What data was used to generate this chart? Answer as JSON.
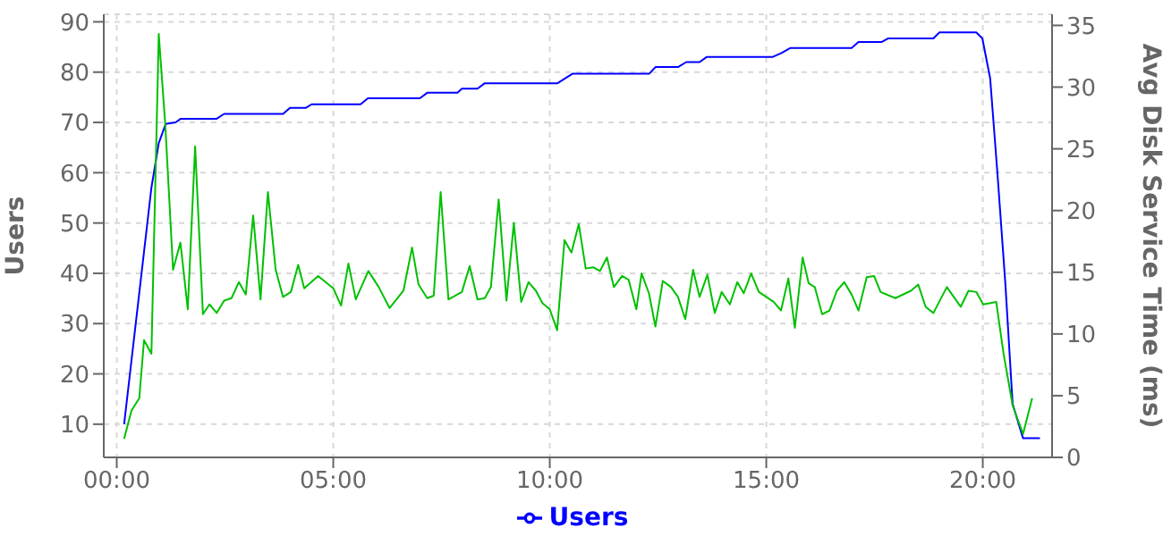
{
  "chart_data": {
    "type": "line",
    "ylabel": "Users",
    "y2label": "Avg Disk Service Time (ms)",
    "xlim": [
      -0.3,
      21.6
    ],
    "xticks": [
      {
        "value": 0,
        "label": "00:00"
      },
      {
        "value": 5,
        "label": "05:00"
      },
      {
        "value": 10,
        "label": "10:00"
      },
      {
        "value": 15,
        "label": "15:00"
      },
      {
        "value": 20,
        "label": "20:00"
      }
    ],
    "ylim": [
      3.4,
      91.5
    ],
    "yticks": [
      10,
      20,
      30,
      40,
      50,
      60,
      70,
      80,
      90
    ],
    "y2lim": [
      0,
      35.9
    ],
    "y2ticks": [
      0,
      5,
      10,
      15,
      20,
      25,
      30,
      35
    ],
    "grid": true,
    "legend": "bottom",
    "marker": "none",
    "line_style": "solid",
    "series": [
      {
        "name": "Users",
        "color": "#0000ff",
        "x": [
          0.17,
          0.63,
          0.8,
          0.97,
          1.13,
          1.36,
          1.47,
          2.3,
          2.48,
          3.84,
          4.0,
          4.37,
          4.5,
          5.63,
          5.8,
          7.0,
          7.17,
          7.87,
          7.97,
          8.33,
          8.5,
          10.18,
          10.53,
          12.3,
          12.44,
          12.96,
          13.15,
          13.46,
          13.62,
          15.14,
          15.35,
          15.56,
          16.97,
          17.13,
          17.67,
          17.81,
          18.86,
          19.0,
          19.85,
          19.99,
          20.17,
          20.34,
          20.52,
          20.69,
          20.93,
          21.32
        ],
        "values": [
          10,
          44.3,
          57,
          65.9,
          69.7,
          70,
          70.7,
          70.7,
          71.7,
          71.7,
          72.9,
          72.9,
          73.6,
          73.6,
          74.8,
          74.8,
          75.9,
          75.9,
          76.7,
          76.7,
          77.8,
          77.8,
          79.7,
          79.7,
          81,
          81,
          82,
          82,
          83,
          83,
          83.8,
          84.8,
          84.8,
          86,
          86,
          86.7,
          86.7,
          87.9,
          87.9,
          86.7,
          78.8,
          59.7,
          38.1,
          14,
          7.2,
          7.2
        ]
      },
      {
        "color": "#00c000",
        "axis": "y2",
        "x": [
          0.17,
          0.34,
          0.52,
          0.63,
          0.8,
          0.97,
          1.12,
          1.3,
          1.47,
          1.64,
          1.81,
          1.99,
          2.14,
          2.31,
          2.48,
          2.65,
          2.82,
          2.98,
          3.15,
          3.32,
          3.49,
          3.67,
          3.84,
          4.02,
          4.19,
          4.33,
          4.65,
          5.0,
          5.18,
          5.35,
          5.52,
          5.81,
          6.05,
          6.3,
          6.62,
          6.82,
          6.97,
          7.17,
          7.32,
          7.48,
          7.66,
          7.97,
          8.15,
          8.33,
          8.5,
          8.64,
          8.82,
          9.0,
          9.17,
          9.34,
          9.51,
          9.68,
          9.83,
          10.0,
          10.17,
          10.34,
          10.5,
          10.67,
          10.83,
          11.0,
          11.16,
          11.32,
          11.48,
          11.67,
          11.82,
          12.0,
          12.12,
          12.29,
          12.44,
          12.61,
          12.8,
          12.96,
          13.13,
          13.31,
          13.46,
          13.64,
          13.81,
          13.97,
          14.16,
          14.33,
          14.48,
          14.65,
          14.83,
          15.0,
          15.17,
          15.34,
          15.51,
          15.66,
          15.84,
          15.98,
          16.12,
          16.29,
          16.46,
          16.63,
          16.8,
          16.97,
          17.13,
          17.32,
          17.49,
          17.64,
          17.98,
          18.34,
          18.51,
          18.68,
          18.86,
          19.17,
          19.49,
          19.67,
          19.85,
          20.01,
          20.31,
          20.48,
          20.69,
          20.93,
          21.14
        ],
        "values": [
          1.5,
          3.8,
          4.8,
          9.5,
          8.4,
          34.3,
          27,
          15.2,
          17.4,
          12,
          25.2,
          11.6,
          12.4,
          11.7,
          12.7,
          12.9,
          14.2,
          13.2,
          19.6,
          12.8,
          21.5,
          15.2,
          13,
          13.4,
          15.6,
          13.7,
          14.7,
          13.7,
          12.3,
          15.7,
          12.8,
          15.1,
          13.8,
          12.1,
          13.5,
          17,
          14,
          12.9,
          13.1,
          21.5,
          12.8,
          13.4,
          15.5,
          12.8,
          12.9,
          13.8,
          20.9,
          12.7,
          19,
          12.6,
          14.2,
          13.5,
          12.5,
          12,
          10.3,
          17.6,
          16.6,
          18.9,
          15.3,
          15.4,
          15.1,
          16.2,
          13.8,
          14.7,
          14.4,
          12,
          14.9,
          13.3,
          10.6,
          14.3,
          13.8,
          13,
          11.2,
          15.2,
          13,
          14.8,
          11.7,
          13.4,
          12.4,
          14.2,
          13.3,
          14.9,
          13.4,
          13,
          12.6,
          11.9,
          14.5,
          10.5,
          16.2,
          14.1,
          13.8,
          11.6,
          11.9,
          13.5,
          14.2,
          13.2,
          11.9,
          14.6,
          14.7,
          13.4,
          12.9,
          13.5,
          14,
          12.2,
          11.7,
          13.8,
          12.2,
          13.5,
          13.4,
          12.4,
          12.6,
          8.4,
          4.2,
          1.9,
          4.8
        ]
      }
    ]
  }
}
